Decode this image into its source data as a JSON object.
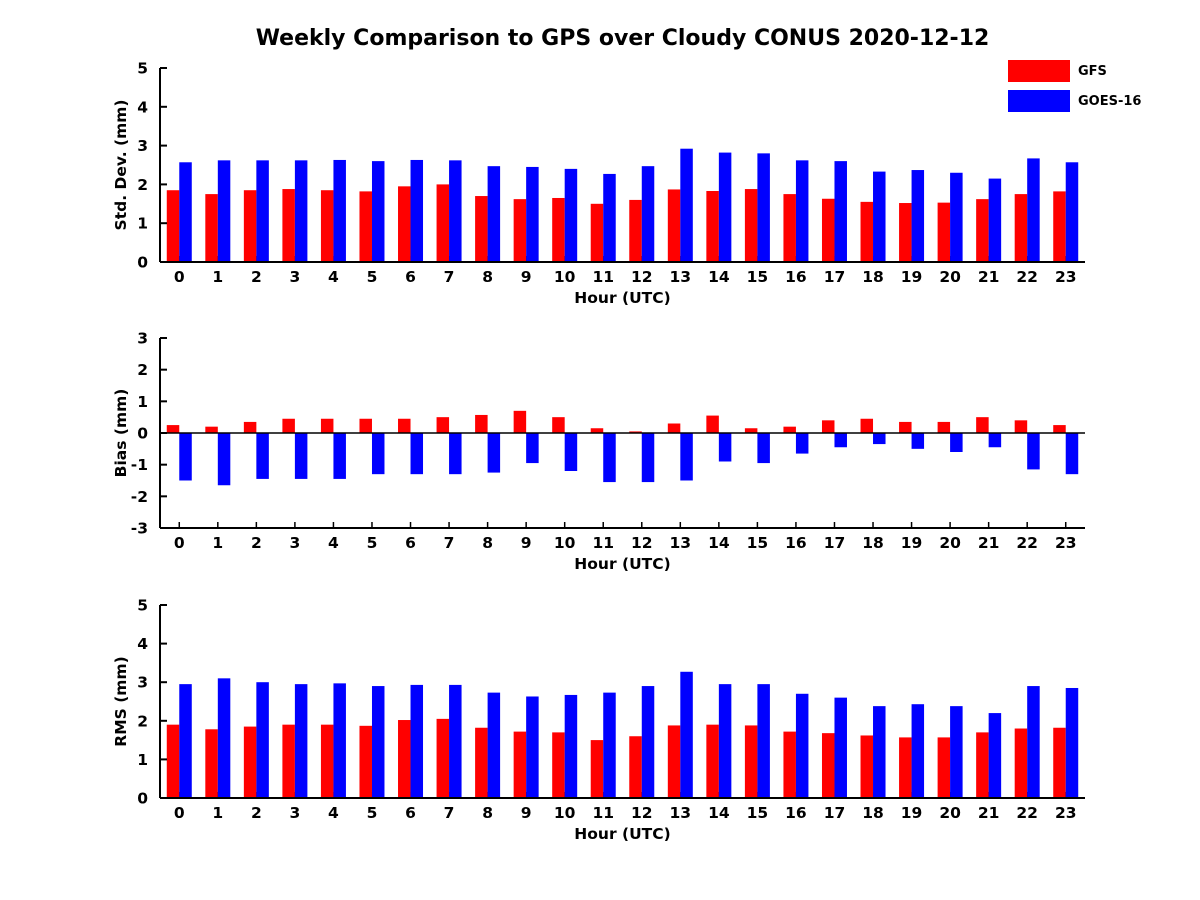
{
  "title": "Weekly Comparison to GPS over Cloudy CONUS 2020-12-12",
  "legend": {
    "position": "top-right",
    "items": [
      {
        "label": "GFS",
        "color": "#ff0000"
      },
      {
        "label": "GOES-16",
        "color": "#0000ff"
      }
    ]
  },
  "chart_data": [
    {
      "type": "bar",
      "title": "",
      "ylabel": "Std. Dev. (mm)",
      "xlabel": "Hour (UTC)",
      "ylim": [
        0,
        5
      ],
      "yticks": [
        0,
        1,
        2,
        3,
        4,
        5
      ],
      "grid": false,
      "legend_position": "top-right",
      "categories": [
        "0",
        "1",
        "2",
        "3",
        "4",
        "5",
        "6",
        "7",
        "8",
        "9",
        "10",
        "11",
        "12",
        "13",
        "14",
        "15",
        "16",
        "17",
        "18",
        "19",
        "20",
        "21",
        "22",
        "23"
      ],
      "series": [
        {
          "name": "GFS",
          "color": "#ff0000",
          "values": [
            1.85,
            1.75,
            1.85,
            1.88,
            1.85,
            1.82,
            1.95,
            2.0,
            1.7,
            1.62,
            1.65,
            1.5,
            1.6,
            1.87,
            1.83,
            1.88,
            1.75,
            1.63,
            1.55,
            1.52,
            1.53,
            1.62,
            1.75,
            1.82
          ]
        },
        {
          "name": "GOES-16",
          "color": "#0000ff",
          "values": [
            2.57,
            2.62,
            2.62,
            2.62,
            2.63,
            2.6,
            2.63,
            2.62,
            2.47,
            2.45,
            2.4,
            2.27,
            2.47,
            2.92,
            2.82,
            2.8,
            2.62,
            2.6,
            2.33,
            2.37,
            2.3,
            2.15,
            2.67,
            2.57
          ]
        }
      ]
    },
    {
      "type": "bar",
      "title": "",
      "ylabel": "Bias (mm)",
      "xlabel": "Hour (UTC)",
      "ylim": [
        -3,
        3
      ],
      "yticks": [
        -3,
        -2,
        -1,
        0,
        1,
        2,
        3
      ],
      "grid": false,
      "categories": [
        "0",
        "1",
        "2",
        "3",
        "4",
        "5",
        "6",
        "7",
        "8",
        "9",
        "10",
        "11",
        "12",
        "13",
        "14",
        "15",
        "16",
        "17",
        "18",
        "19",
        "20",
        "21",
        "22",
        "23"
      ],
      "series": [
        {
          "name": "GFS",
          "color": "#ff0000",
          "values": [
            0.25,
            0.2,
            0.35,
            0.45,
            0.45,
            0.45,
            0.45,
            0.5,
            0.57,
            0.7,
            0.5,
            0.15,
            0.05,
            0.3,
            0.55,
            0.15,
            0.2,
            0.4,
            0.45,
            0.35,
            0.35,
            0.5,
            0.4,
            0.25
          ]
        },
        {
          "name": "GOES-16",
          "color": "#0000ff",
          "values": [
            -1.5,
            -1.65,
            -1.45,
            -1.45,
            -1.45,
            -1.3,
            -1.3,
            -1.3,
            -1.25,
            -0.95,
            -1.2,
            -1.55,
            -1.55,
            -1.5,
            -0.9,
            -0.95,
            -0.65,
            -0.45,
            -0.35,
            -0.5,
            -0.6,
            -0.45,
            -1.15,
            -1.3
          ]
        }
      ]
    },
    {
      "type": "bar",
      "title": "",
      "ylabel": "RMS (mm)",
      "xlabel": "Hour (UTC)",
      "ylim": [
        0,
        5
      ],
      "yticks": [
        0,
        1,
        2,
        3,
        4,
        5
      ],
      "grid": false,
      "categories": [
        "0",
        "1",
        "2",
        "3",
        "4",
        "5",
        "6",
        "7",
        "8",
        "9",
        "10",
        "11",
        "12",
        "13",
        "14",
        "15",
        "16",
        "17",
        "18",
        "19",
        "20",
        "21",
        "22",
        "23"
      ],
      "series": [
        {
          "name": "GFS",
          "color": "#ff0000",
          "values": [
            1.9,
            1.78,
            1.85,
            1.9,
            1.9,
            1.87,
            2.02,
            2.05,
            1.82,
            1.72,
            1.7,
            1.5,
            1.6,
            1.88,
            1.9,
            1.88,
            1.72,
            1.68,
            1.62,
            1.57,
            1.57,
            1.7,
            1.8,
            1.82
          ]
        },
        {
          "name": "GOES-16",
          "color": "#0000ff",
          "values": [
            2.95,
            3.1,
            3.0,
            2.95,
            2.97,
            2.9,
            2.93,
            2.93,
            2.73,
            2.63,
            2.67,
            2.73,
            2.9,
            3.27,
            2.95,
            2.95,
            2.7,
            2.6,
            2.38,
            2.43,
            2.38,
            2.2,
            2.9,
            2.85
          ]
        }
      ]
    }
  ]
}
